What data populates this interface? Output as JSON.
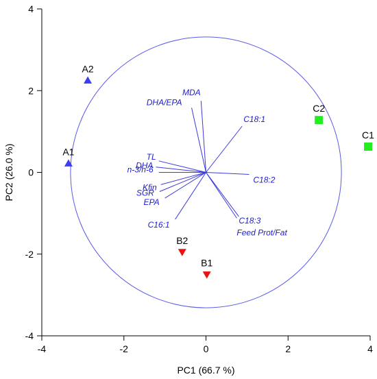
{
  "chart_data": {
    "type": "scatter",
    "xlabel": "PC1 (66.7 %)",
    "ylabel": "PC2 (26.0 %)",
    "xlim": [
      -4,
      4
    ],
    "ylim": [
      -4,
      4
    ],
    "x_ticks": [
      "-4",
      "-2",
      "0",
      "2",
      "4"
    ],
    "y_ticks": [
      "-4",
      "-2",
      "0",
      "2",
      "4"
    ],
    "correlation_circle_radius": 3.3,
    "colors": {
      "A": "#3c3cf0",
      "B": "#ee1111",
      "C": "#22ee22",
      "loadings": "#3a3ae0"
    },
    "points": [
      {
        "label": "A1",
        "x": -3.35,
        "y": 0.22,
        "group": "A",
        "marker": "triangle-up"
      },
      {
        "label": "A2",
        "x": -2.88,
        "y": 2.25,
        "group": "A",
        "marker": "triangle-up"
      },
      {
        "label": "B1",
        "x": 0.02,
        "y": -2.5,
        "group": "B",
        "marker": "triangle-down"
      },
      {
        "label": "B2",
        "x": -0.58,
        "y": -1.95,
        "group": "B",
        "marker": "triangle-down"
      },
      {
        "label": "C1",
        "x": 3.95,
        "y": 0.63,
        "group": "C",
        "marker": "square"
      },
      {
        "label": "C2",
        "x": 2.75,
        "y": 1.28,
        "group": "C",
        "marker": "square"
      }
    ],
    "loadings": [
      {
        "label": "MDA",
        "x": -0.12,
        "y": 1.75
      },
      {
        "label": "DHA/EPA",
        "x": -0.35,
        "y": 1.58
      },
      {
        "label": "C18:1",
        "x": 0.88,
        "y": 1.13
      },
      {
        "label": "TL",
        "x": -1.15,
        "y": 0.28
      },
      {
        "label": "DHA",
        "x": -1.22,
        "y": 0.13
      },
      {
        "label": "n-3/n-6",
        "x": -1.15,
        "y": 0.0
      },
      {
        "label": "C18:2",
        "x": 1.05,
        "y": -0.05
      },
      {
        "label": "Kfin",
        "x": -1.1,
        "y": -0.3
      },
      {
        "label": "SGR",
        "x": -1.13,
        "y": -0.47
      },
      {
        "label": "EPA",
        "x": -1.0,
        "y": -0.63
      },
      {
        "label": "C16:1",
        "x": -0.75,
        "y": -1.15
      },
      {
        "label": "C18:3",
        "x": 0.8,
        "y": -1.08
      },
      {
        "label": "Feed Prot/Fat",
        "x": 0.75,
        "y": -1.12
      }
    ]
  }
}
